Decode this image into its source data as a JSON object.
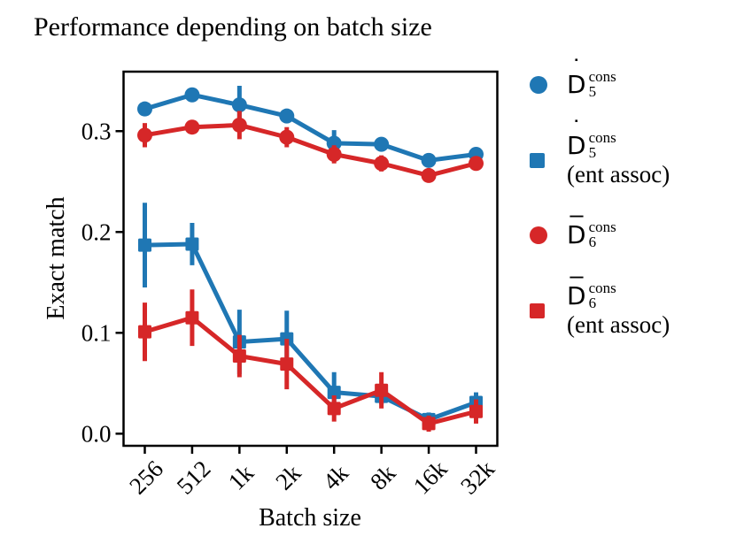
{
  "figure": {
    "title": "Performance depending on batch size"
  },
  "colors": {
    "blue": "#1f77b4",
    "red": "#d62728",
    "axis": "#000000",
    "background": "#ffffff"
  },
  "chart_data": {
    "type": "line",
    "title": "Performance depending on batch size",
    "xlabel": "Batch size",
    "ylabel": "Exact match",
    "categories": [
      "256",
      "512",
      "1k",
      "2k",
      "4k",
      "8k",
      "16k",
      "32k"
    ],
    "ylim": [
      -0.012,
      0.359
    ],
    "yticks": [
      0,
      0.1,
      0.2,
      0.3
    ],
    "ytick_labels": [
      "0.0",
      "0.1",
      "0.2",
      "0.3"
    ],
    "grid": false,
    "legend_position": "right of axes",
    "error_bars": true,
    "series": [
      {
        "name": "D5dot-cons",
        "legend": "Ḋ₅^cons",
        "marker": "circle",
        "color": "#1f77b4",
        "values": [
          0.322,
          0.336,
          0.326,
          0.315,
          0.288,
          0.287,
          0.271,
          0.277
        ],
        "errors": [
          0.005,
          0.005,
          0.019,
          0.007,
          0.013,
          0.005,
          0.007,
          0.005
        ]
      },
      {
        "name": "D5dot-cons-ent-assoc",
        "legend": "Ḋ₅^cons (ent assoc)",
        "marker": "square",
        "color": "#1f77b4",
        "values": [
          0.187,
          0.188,
          0.091,
          0.094,
          0.041,
          0.037,
          0.014,
          0.031
        ],
        "errors": [
          0.042,
          0.021,
          0.032,
          0.028,
          0.02,
          0.008,
          0.007,
          0.01
        ]
      },
      {
        "name": "D6bar-cons",
        "legend": "D̄₆^cons",
        "marker": "circle",
        "color": "#d62728",
        "values": [
          0.296,
          0.304,
          0.306,
          0.294,
          0.277,
          0.268,
          0.256,
          0.268
        ],
        "errors": [
          0.012,
          0.006,
          0.014,
          0.01,
          0.009,
          0.008,
          0.006,
          0.006
        ]
      },
      {
        "name": "D6bar-cons-ent-assoc",
        "legend": "D̄₆^cons (ent assoc)",
        "marker": "square",
        "color": "#d62728",
        "values": [
          0.101,
          0.115,
          0.077,
          0.069,
          0.025,
          0.043,
          0.01,
          0.022
        ],
        "errors": [
          0.029,
          0.028,
          0.021,
          0.025,
          0.013,
          0.018,
          0.008,
          0.012
        ]
      }
    ]
  },
  "legend": {
    "items": [
      {
        "marker": "circle",
        "color": "#1f77b4",
        "letter": "D",
        "accent_glyph": "˙",
        "accent_type": "dot",
        "sup": "cons",
        "sub": "5",
        "note": ""
      },
      {
        "marker": "square",
        "color": "#1f77b4",
        "letter": "D",
        "accent_glyph": "˙",
        "accent_type": "dot",
        "sup": "cons",
        "sub": "5",
        "note": "(ent assoc)"
      },
      {
        "marker": "circle",
        "color": "#d62728",
        "letter": "D",
        "accent_glyph": "¯",
        "accent_type": "bar",
        "sup": "cons",
        "sub": "6",
        "note": ""
      },
      {
        "marker": "square",
        "color": "#d62728",
        "letter": "D",
        "accent_glyph": "¯",
        "accent_type": "bar",
        "sup": "cons",
        "sub": "6",
        "note": "(ent assoc)"
      }
    ]
  }
}
